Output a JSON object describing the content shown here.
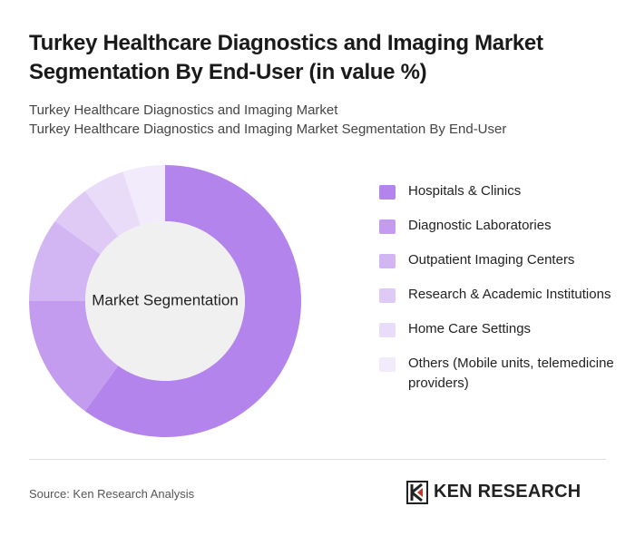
{
  "chart_data": {
    "type": "donut",
    "title": "Turkey Healthcare Diagnostics and Imaging Market Segmentation By End-User (in value %)",
    "subtitles": [
      "Turkey Healthcare Diagnostics and Imaging Market",
      "Turkey Healthcare Diagnostics and Imaging Market Segmentation By End-User"
    ],
    "center_label": "Market Segmentation",
    "categories": [
      "Hospitals & Clinics",
      "Diagnostic Laboratories",
      "Outpatient Imaging Centers",
      "Research & Academic Institutions",
      "Home Care Settings",
      "Others (Mobile units, telemedicine providers)"
    ],
    "values": [
      60,
      15,
      10,
      5,
      5,
      5
    ],
    "colors": [
      "#b284ec",
      "#c39cf0",
      "#d2b6f3",
      "#dfcaf6",
      "#e9dcf9",
      "#f2ebfc"
    ]
  },
  "footer": {
    "source": "Source: Ken Research Analysis",
    "brand": "KEN RESEARCH"
  }
}
